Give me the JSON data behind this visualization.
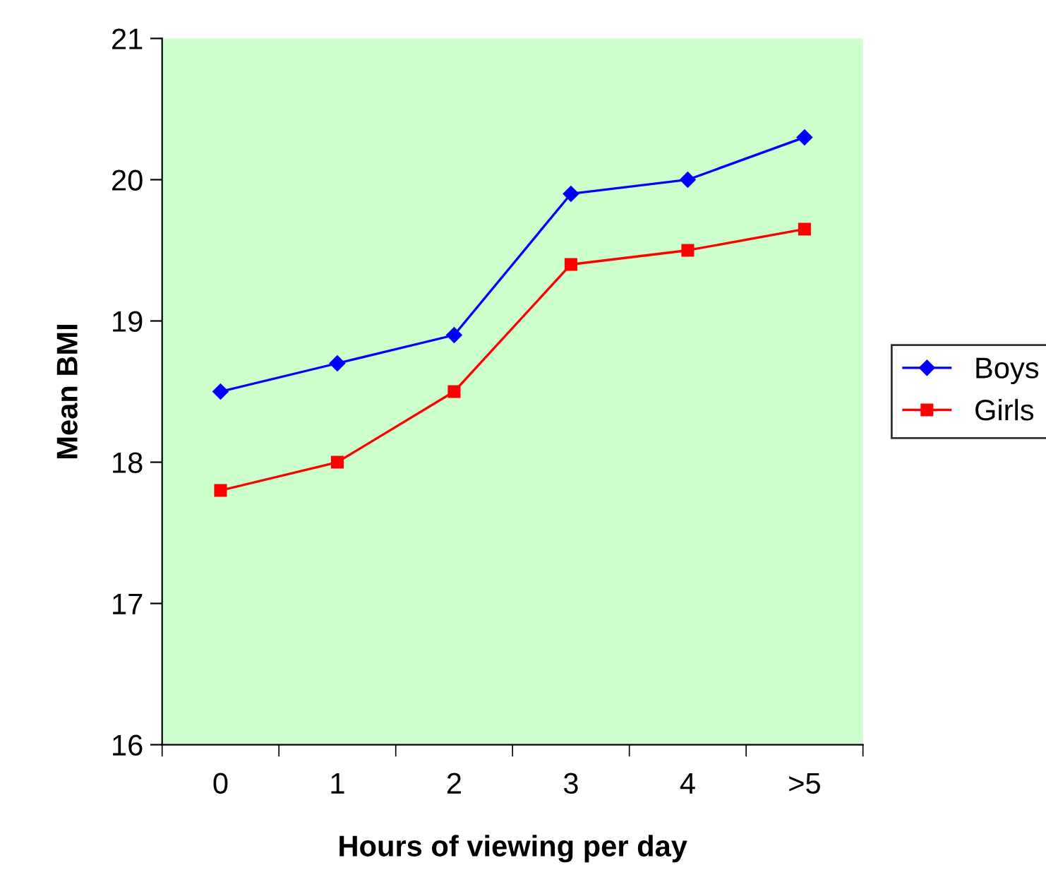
{
  "chart_data": {
    "type": "line",
    "xlabel": "Hours of viewing per day",
    "ylabel": "Mean BMI",
    "categories": [
      "0",
      "1",
      "2",
      "3",
      "4",
      ">5"
    ],
    "series": [
      {
        "name": "Boys",
        "color": "#0000ff",
        "marker": "diamond",
        "values": [
          18.5,
          18.7,
          18.9,
          19.9,
          20.0,
          20.3
        ]
      },
      {
        "name": "Girls",
        "color": "#ff0000",
        "marker": "square",
        "values": [
          17.8,
          18.0,
          18.5,
          19.4,
          19.5,
          19.65
        ]
      }
    ],
    "ylim": [
      16,
      21
    ],
    "yticks": [
      16,
      17,
      18,
      19,
      20,
      21
    ],
    "grid": false,
    "legend": "right",
    "line_style": "solid"
  }
}
